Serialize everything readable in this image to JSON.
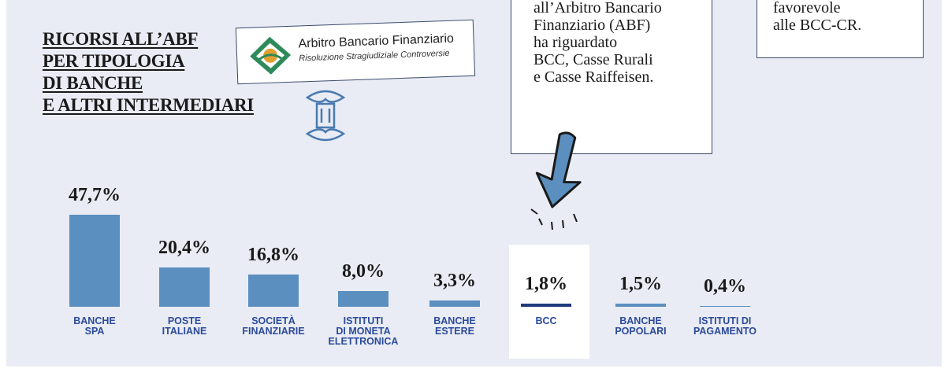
{
  "title": "RICORSI ALL’ABF\nPER TIPOLOGIA\nDI BANCHE\nE ALTRI INTERMEDIARI",
  "logo": {
    "name": "Arbitro Bancario Finanziario",
    "subtitle": "Risoluzione Stragiudiziale Controversie"
  },
  "callouts": [
    "all’Arbitro Bancario\nFinanziario (ABF)\nha riguardato\nBCC, Casse Rurali\ne Casse Raiffeisen.",
    "favorevole\nalle BCC-CR."
  ],
  "chart_data": {
    "type": "bar",
    "categories": [
      "BANCHE\nSPA",
      "POSTE\nITALIANE",
      "SOCIETÀ\nFINANZIARIE",
      "ISTITUTI\nDI MONETA\nELETTRONICA",
      "BANCHE\nESTERE",
      "BCC",
      "BANCHE\nPOPOLARI",
      "ISTITUTI DI\nPAGAMENTO"
    ],
    "values": [
      47.7,
      20.4,
      16.8,
      8.0,
      3.3,
      1.8,
      1.5,
      0.4
    ],
    "value_labels": [
      "47,7%",
      "20,4%",
      "16,8%",
      "8,0%",
      "3,3%",
      "1,8%",
      "1,5%",
      "0,4%"
    ],
    "colors": [
      "#5b8fc0",
      "#5b8fc0",
      "#5b8fc0",
      "#5b8fc0",
      "#5b8fc0",
      "#1f3a7a",
      "#5b8fc0",
      "#5b8fc0"
    ]
  }
}
